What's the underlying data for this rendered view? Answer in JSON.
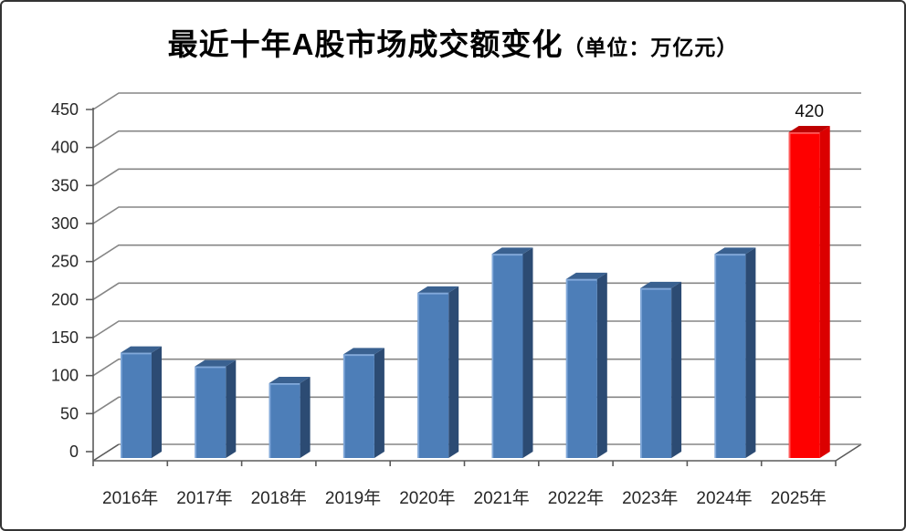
{
  "title": {
    "main": "最近十年A股市场成交额变化",
    "unit": "（单位：万亿元）"
  },
  "chart_data": {
    "type": "bar",
    "style": "3d-column",
    "title": "最近十年A股市场成交额变化（单位：万亿元）",
    "unit": "万亿元",
    "categories": [
      "2016年",
      "2017年",
      "2018年",
      "2019年",
      "2020年",
      "2021年",
      "2022年",
      "2023年",
      "2024年",
      "2025年"
    ],
    "values": [
      130,
      112,
      90,
      128,
      209,
      260,
      227,
      215,
      260,
      420
    ],
    "ylim": [
      0,
      450
    ],
    "ytick_step": 50,
    "yticks": [
      0,
      50,
      100,
      150,
      200,
      250,
      300,
      350,
      400,
      450
    ],
    "grid": true,
    "legend": "none",
    "highlight_index": 9,
    "data_labels": [
      {
        "index": 9,
        "text": "420"
      }
    ],
    "colors": {
      "bar_front": "#4D7EB8",
      "bar_top": "#3A6190",
      "bar_side": "#2C4B73",
      "bar_bevel": "#82A9DA",
      "highlight_front": "#FE0000",
      "highlight_top": "#BE0000",
      "highlight_side": "#DB0000",
      "highlight_bevel": "#FF5C5C",
      "grid": "#868686",
      "axis": "#5A5A5A",
      "tick_text": "#262626",
      "label_text": "#111111"
    }
  }
}
